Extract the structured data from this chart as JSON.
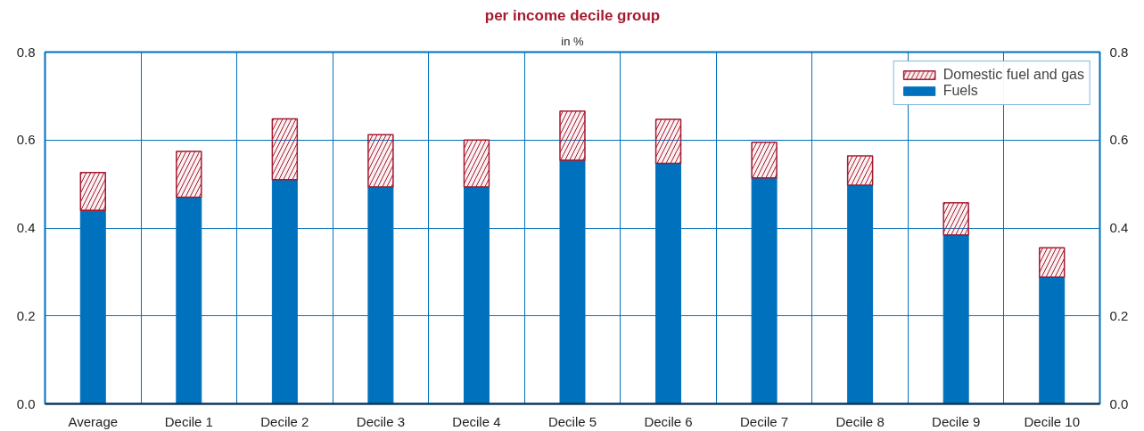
{
  "chart_data": {
    "type": "bar",
    "title": "per income decile group",
    "subtitle": "in %",
    "categories": [
      "Average",
      "Decile 1",
      "Decile 2",
      "Decile 3",
      "Decile 4",
      "Decile 5",
      "Decile 6",
      "Decile 7",
      "Decile 8",
      "Decile 9",
      "Decile 10"
    ],
    "stacked": true,
    "series": [
      {
        "name": "Fuels",
        "color": "#0071bc",
        "values": [
          0.44,
          0.47,
          0.51,
          0.493,
          0.493,
          0.554,
          0.547,
          0.514,
          0.497,
          0.384,
          0.288
        ]
      },
      {
        "name": "Domestic fuel and gas",
        "color": "#a6192e",
        "values": [
          0.086,
          0.104,
          0.138,
          0.119,
          0.107,
          0.112,
          0.1,
          0.081,
          0.067,
          0.073,
          0.067
        ]
      }
    ],
    "ylim": [
      0,
      0.8
    ],
    "yticks": [
      {
        "value": 0,
        "label": "0.0"
      },
      0.2,
      0.4,
      0.6,
      0.8
    ],
    "y2lim": [
      0,
      0.8
    ],
    "y2ticks": [
      {
        "value": 0,
        "label": "0.0"
      },
      0.2,
      0.4,
      0.6,
      0.8
    ],
    "grid": true,
    "legend": "top right"
  }
}
